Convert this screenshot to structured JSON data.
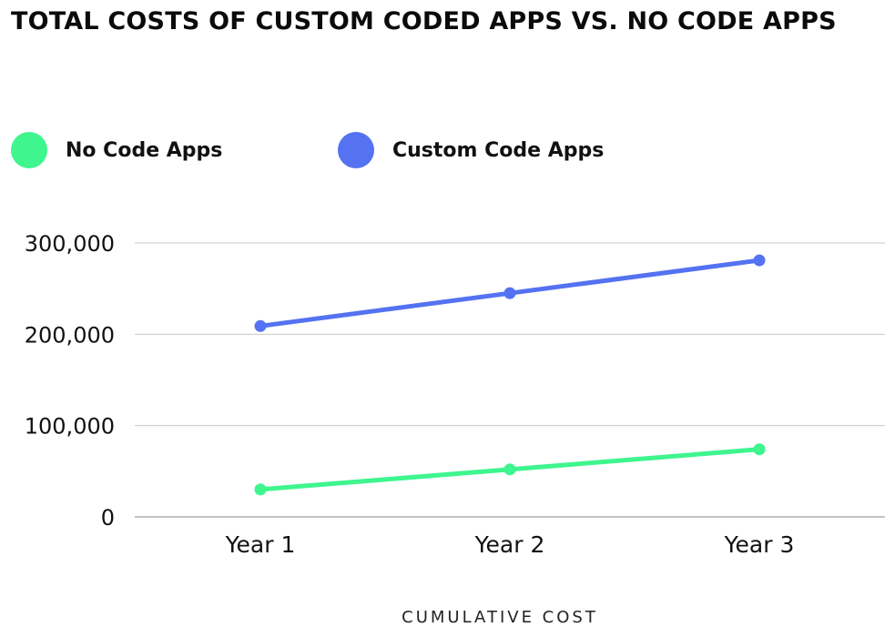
{
  "title": "TOTAL COSTS OF CUSTOM CODED APPS VS. NO CODE APPS",
  "chart_data": {
    "type": "line",
    "categories": [
      "Year 1",
      "Year 2",
      "Year 3"
    ],
    "series": [
      {
        "name": "No Code Apps",
        "color": "#3ef58e",
        "values": [
          30000,
          52000,
          74000
        ]
      },
      {
        "name": "Custom Code Apps",
        "color": "#5472f1",
        "values": [
          209000,
          245000,
          281000
        ]
      }
    ],
    "ylim": [
      0,
      300000
    ],
    "yticks": [
      0,
      100000,
      200000,
      300000
    ],
    "ytick_labels": [
      "0",
      "100,000",
      "200,000",
      "300,000"
    ],
    "xlabel": "CUMULATIVE COST",
    "grid": true,
    "legend_position": "top-left"
  }
}
